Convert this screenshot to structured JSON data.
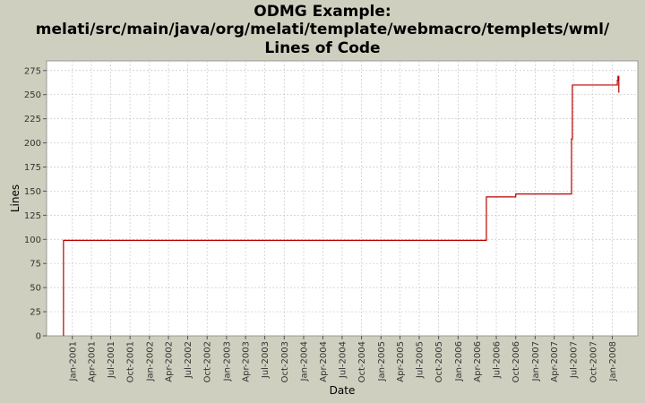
{
  "chart_data": {
    "type": "line",
    "line_style": "step",
    "title_lines": [
      "ODMG Example:",
      "melati/src/main/java/org/melati/template/webmacro/templets/wml/",
      "Lines of Code"
    ],
    "xlabel": "Date",
    "ylabel": "Lines",
    "ylim": [
      0,
      285
    ],
    "yticks": [
      0,
      25,
      50,
      75,
      100,
      125,
      150,
      175,
      200,
      225,
      250,
      275
    ],
    "xticks": [
      "Jan-2001",
      "Apr-2001",
      "Jul-2001",
      "Oct-2001",
      "Jan-2002",
      "Apr-2002",
      "Jul-2002",
      "Oct-2002",
      "Jan-2003",
      "Apr-2003",
      "Jul-2003",
      "Oct-2003",
      "Jan-2004",
      "Apr-2004",
      "Jul-2004",
      "Oct-2004",
      "Jan-2005",
      "Apr-2005",
      "Jul-2005",
      "Oct-2005",
      "Jan-2006",
      "Apr-2006",
      "Jul-2006",
      "Oct-2006",
      "Jan-2007",
      "Apr-2007",
      "Jul-2007",
      "Oct-2007",
      "Jan-2008"
    ],
    "grid": true,
    "colors": {
      "background": "#cfcfbf",
      "plot": "#ffffff",
      "line": "#bb0000",
      "grid": "#c8c8c8"
    },
    "series": [
      {
        "x": [
          "2000-11-20",
          "2000-11-20",
          "2006-05-15",
          "2006-10-01",
          "2007-06-22",
          "2007-06-26",
          "2008-01-25",
          "2008-01-28",
          "2008-02-01"
        ],
        "y": [
          0,
          99,
          144,
          147,
          204,
          260,
          265,
          269,
          252
        ]
      }
    ]
  }
}
